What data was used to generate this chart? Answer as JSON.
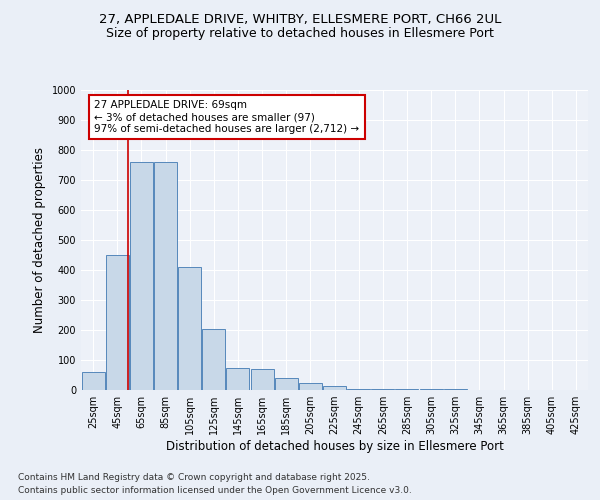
{
  "title_line1": "27, APPLEDALE DRIVE, WHITBY, ELLESMERE PORT, CH66 2UL",
  "title_line2": "Size of property relative to detached houses in Ellesmere Port",
  "xlabel": "Distribution of detached houses by size in Ellesmere Port",
  "ylabel": "Number of detached properties",
  "categories": [
    "25sqm",
    "45sqm",
    "65sqm",
    "85sqm",
    "105sqm",
    "125sqm",
    "145sqm",
    "165sqm",
    "185sqm",
    "205sqm",
    "225sqm",
    "245sqm",
    "265sqm",
    "285sqm",
    "305sqm",
    "325sqm",
    "345sqm",
    "365sqm",
    "385sqm",
    "405sqm",
    "425sqm"
  ],
  "values": [
    60,
    450,
    760,
    760,
    410,
    205,
    75,
    70,
    40,
    25,
    15,
    3,
    3,
    3,
    3,
    3,
    0,
    0,
    0,
    0,
    0
  ],
  "bar_color": "#c8d8e8",
  "bar_edge_color": "#5588bb",
  "vline_x": 1.5,
  "vline_color": "#cc0000",
  "annotation_text": "27 APPLEDALE DRIVE: 69sqm\n← 3% of detached houses are smaller (97)\n97% of semi-detached houses are larger (2,712) →",
  "annotation_box_color": "#ffffff",
  "annotation_box_edge": "#cc0000",
  "ylim": [
    0,
    1000
  ],
  "yticks": [
    0,
    100,
    200,
    300,
    400,
    500,
    600,
    700,
    800,
    900,
    1000
  ],
  "footer_line1": "Contains HM Land Registry data © Crown copyright and database right 2025.",
  "footer_line2": "Contains public sector information licensed under the Open Government Licence v3.0.",
  "bg_color": "#eaeff7",
  "plot_bg_color": "#edf1f8",
  "grid_color": "#ffffff",
  "title_fontsize": 9.5,
  "subtitle_fontsize": 9,
  "axis_label_fontsize": 8.5,
  "tick_fontsize": 7,
  "footer_fontsize": 6.5,
  "annot_fontsize": 7.5
}
